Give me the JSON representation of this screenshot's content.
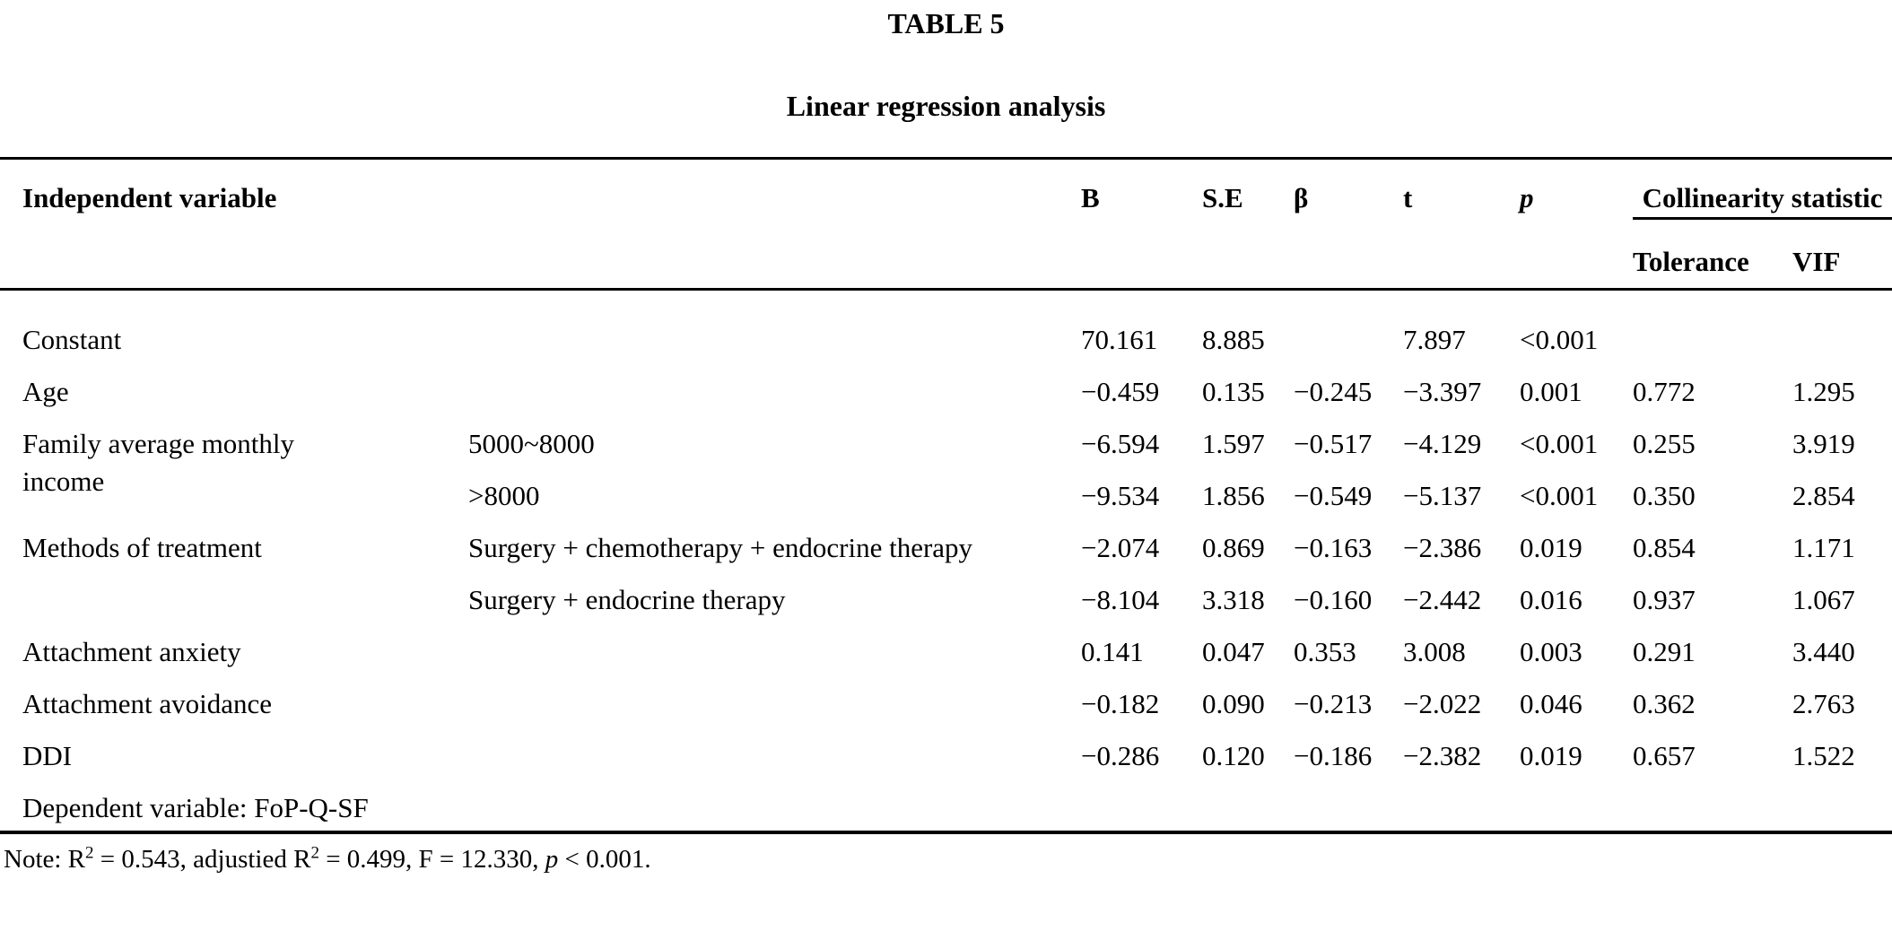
{
  "page": {
    "table_label": "TABLE 5",
    "table_title": "Linear regression analysis"
  },
  "colors": {
    "text": "#000000",
    "background": "#ffffff",
    "rule": "#000000"
  },
  "table": {
    "headers": {
      "independent_variable": "Independent variable",
      "b": "B",
      "se": "S.E",
      "beta": "β",
      "t": "t",
      "p": "p",
      "collinearity": "Collinearity statistic",
      "tolerance": "Tolerance",
      "vif": "VIF"
    },
    "rows": [
      {
        "variable": "Constant",
        "rowspan": 1,
        "category": "",
        "b": "70.161",
        "se": "8.885",
        "beta": "",
        "t": "7.897",
        "p": "<0.001",
        "tolerance": "",
        "vif": ""
      },
      {
        "variable": "Age",
        "rowspan": 1,
        "category": "",
        "b": "−0.459",
        "se": "0.135",
        "beta": "−0.245",
        "t": "−3.397",
        "p": "0.001",
        "tolerance": "0.772",
        "vif": "1.295"
      },
      {
        "variable": "Family average monthly income",
        "rowspan": 2,
        "category": "5000~8000",
        "b": "−6.594",
        "se": "1.597",
        "beta": "−0.517",
        "t": "−4.129",
        "p": "<0.001",
        "tolerance": "0.255",
        "vif": "3.919"
      },
      {
        "variable": null,
        "rowspan": 1,
        "category": ">8000",
        "b": "−9.534",
        "se": "1.856",
        "beta": "−0.549",
        "t": "−5.137",
        "p": "<0.001",
        "tolerance": "0.350",
        "vif": "2.854"
      },
      {
        "variable": "Methods of treatment",
        "rowspan": 2,
        "category": "Surgery + chemotherapy + endocrine therapy",
        "b": "−2.074",
        "se": "0.869",
        "beta": "−0.163",
        "t": "−2.386",
        "p": "0.019",
        "tolerance": "0.854",
        "vif": "1.171"
      },
      {
        "variable": null,
        "rowspan": 1,
        "category": "Surgery + endocrine therapy",
        "b": "−8.104",
        "se": "3.318",
        "beta": "−0.160",
        "t": "−2.442",
        "p": "0.016",
        "tolerance": "0.937",
        "vif": "1.067"
      },
      {
        "variable": "Attachment anxiety",
        "rowspan": 1,
        "category": "",
        "b": "0.141",
        "se": "0.047",
        "beta": "0.353",
        "t": "3.008",
        "p": "0.003",
        "tolerance": "0.291",
        "vif": "3.440"
      },
      {
        "variable": "Attachment avoidance",
        "rowspan": 1,
        "category": "",
        "b": "−0.182",
        "se": "0.090",
        "beta": "−0.213",
        "t": "−2.022",
        "p": "0.046",
        "tolerance": "0.362",
        "vif": "2.763"
      },
      {
        "variable": "DDI",
        "rowspan": 1,
        "category": "",
        "b": "−0.286",
        "se": "0.120",
        "beta": "−0.186",
        "t": "−2.382",
        "p": "0.019",
        "tolerance": "0.657",
        "vif": "1.522"
      }
    ],
    "dependent_note": "Dependent variable: FoP-Q-SF"
  },
  "note": {
    "segments": [
      {
        "t": "Note: R",
        "style": "plain"
      },
      {
        "t": "2",
        "style": "sup"
      },
      {
        "t": " = 0.543, adjustied R",
        "style": "plain"
      },
      {
        "t": "2",
        "style": "sup"
      },
      {
        "t": " = 0.499, F = 12.330, ",
        "style": "plain"
      },
      {
        "t": "p",
        "style": "italic"
      },
      {
        "t": " < 0.001.",
        "style": "plain"
      }
    ]
  }
}
